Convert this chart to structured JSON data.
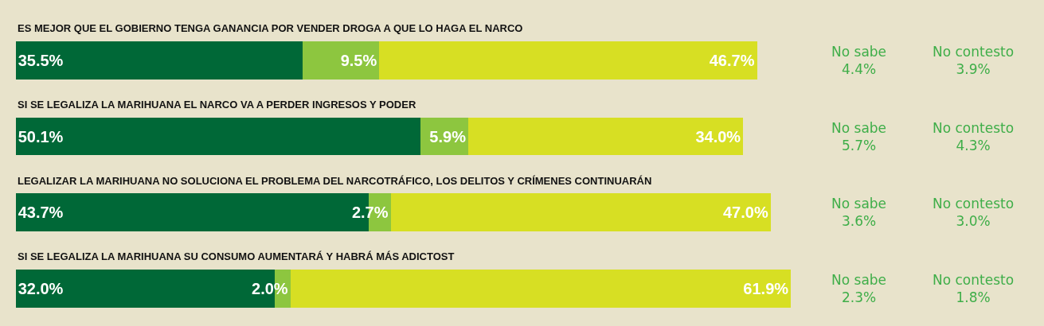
{
  "chart_data": {
    "type": "bar",
    "orientation": "horizontal",
    "stacked": true,
    "categories": [
      "ES MEJOR QUE EL GOBIERNO TENGA GANANCIA POR VENDER DROGA A QUE LO HAGA EL NARCO",
      "SI SE LEGALIZA LA MARIHUANA EL NARCO VA A PERDER INGRESOS Y PODER",
      "LEGALIZAR LA MARIHUANA NO SOLUCIONA EL PROBLEMA DEL NARCOTRÁFICO, LOS DELITOS Y CRÍMENES CONTINUARÁN",
      "SI SE LEGALIZA LA MARIHUANA SU CONSUMO AUMENTARÁ Y HABRÁ MÁS ADICTOST"
    ],
    "series": [
      {
        "color": "#006837",
        "values": [
          35.5,
          50.1,
          43.7,
          32.0
        ],
        "value_labels": [
          "35.5%",
          "50.1%",
          "43.7%",
          "32.0%"
        ]
      },
      {
        "color": "#8dc63f",
        "values": [
          9.5,
          5.9,
          2.7,
          2.0
        ],
        "value_labels": [
          "9.5%",
          "5.9%",
          "2.7%",
          "2.0%"
        ]
      },
      {
        "color": "#d7df23",
        "values": [
          46.7,
          34.0,
          47.0,
          61.9
        ],
        "value_labels": [
          "46.7%",
          "34.0%",
          "47.0%",
          "61.9%"
        ]
      }
    ],
    "xlim": [
      0,
      96
    ],
    "tick_labels": false,
    "grid": false,
    "annotations": [
      "No sabe\n4.4%",
      "No contesto\n3.9%",
      "No sabe\n5.7%",
      "No contesto\n4.3%",
      "No sabe\n3.6%",
      "No contesto\n3.0%",
      "No sabe\n2.3%",
      "No contesto\n1.8%"
    ]
  }
}
